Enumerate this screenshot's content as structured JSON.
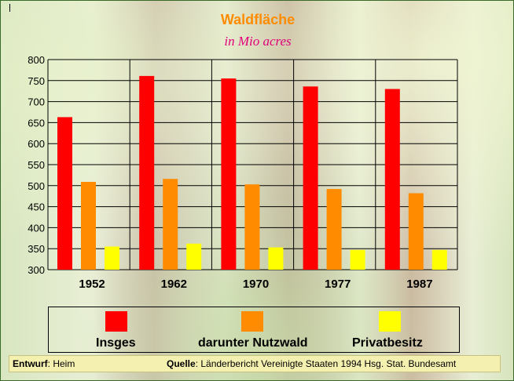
{
  "chart_data": {
    "type": "bar",
    "title": "Waldfläche",
    "subtitle": "in Mio acres",
    "categories": [
      "1952",
      "1962",
      "1970",
      "1977",
      "1987"
    ],
    "series": [
      {
        "name": "Insges",
        "color": "#ff0000",
        "values": [
          663,
          761,
          755,
          736,
          730
        ]
      },
      {
        "name": "darunter Nutzwald",
        "color": "#ff8c00",
        "values": [
          509,
          516,
          503,
          492,
          482
        ]
      },
      {
        "name": "Privatbesitz",
        "color": "#ffff00",
        "values": [
          355,
          362,
          353,
          347,
          347
        ]
      }
    ],
    "yticks": [
      300,
      350,
      400,
      450,
      500,
      550,
      600,
      650,
      700,
      750,
      800
    ],
    "ylim": [
      300,
      800
    ],
    "grid": true,
    "legend": "bottom"
  },
  "footer": {
    "left_label": "Entwurf",
    "left_value": ": Heim",
    "right_label": "Quelle",
    "right_value": ": Länderbericht Vereinigte Staaten 1994  Hsg. Stat. Bundesamt"
  }
}
